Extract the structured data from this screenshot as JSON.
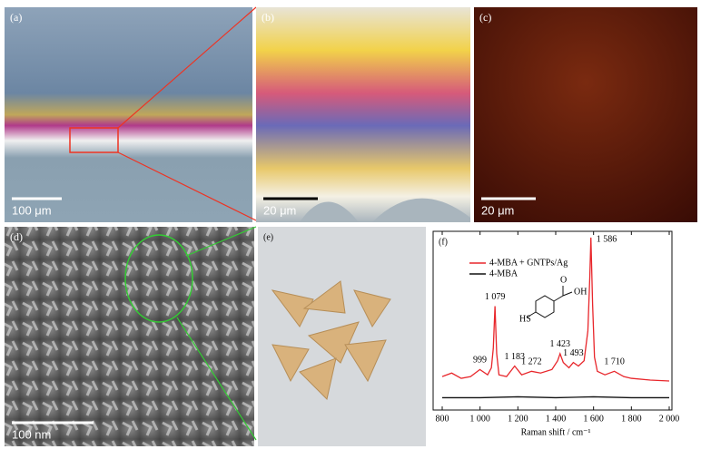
{
  "panels": [
    {
      "label": "(a)",
      "scale": "100 μm"
    },
    {
      "label": "(b)",
      "scale": "20 μm"
    },
    {
      "label": "(c)",
      "scale": "20 μm"
    },
    {
      "label": "(d)",
      "scale": "100 nm"
    },
    {
      "label": "(e)"
    },
    {
      "label": "(f)"
    }
  ],
  "chart_data": {
    "type": "line",
    "x_label": "Raman shift / cm⁻¹",
    "xlim": [
      800,
      2000
    ],
    "ylim": [
      0,
      100
    ],
    "xticks": [
      800,
      {
        "value": 1000,
        "label": "1 000"
      },
      {
        "value": 1200,
        "label": "1 200"
      },
      {
        "value": 1400,
        "label": "1 400"
      },
      {
        "value": 1600,
        "label": "1 600"
      },
      {
        "value": 1800,
        "label": "1 800"
      },
      {
        "value": 2000,
        "label": "2 000"
      }
    ],
    "series": [
      {
        "name": "4-MBA + GNTPs/Ag",
        "color": "#e8262b",
        "x": [
          800,
          850,
          900,
          950,
          999,
          1040,
          1060,
          1070,
          1079,
          1088,
          1100,
          1140,
          1183,
          1220,
          1272,
          1320,
          1380,
          1410,
          1423,
          1440,
          1470,
          1493,
          1520,
          1550,
          1570,
          1580,
          1586,
          1595,
          1605,
          1620,
          1660,
          1710,
          1760,
          1800,
          1900,
          2000
        ],
        "values": [
          19,
          21,
          18,
          19,
          23,
          20,
          24,
          35,
          59,
          32,
          20,
          19,
          25,
          20,
          22,
          21,
          23,
          28,
          32,
          27,
          24,
          27,
          25,
          28,
          45,
          75,
          98,
          60,
          30,
          22,
          20,
          22,
          19,
          18,
          17,
          16.5
        ]
      },
      {
        "name": "4-MBA",
        "color": "#111111",
        "x": [
          800,
          1000,
          1200,
          1400,
          1600,
          1800,
          2000
        ],
        "values": [
          7,
          7,
          7.5,
          7,
          7.5,
          7,
          7
        ]
      }
    ],
    "peaks": [
      {
        "value": 999,
        "label": "999"
      },
      {
        "value": 1079,
        "label": "1 079"
      },
      {
        "value": 1183,
        "label": "1 183"
      },
      {
        "value": 1272,
        "label": "1 272"
      },
      {
        "value": 1423,
        "label": "1 423"
      },
      {
        "value": 1493,
        "label": "1 493"
      },
      {
        "value": 1586,
        "label": "1 586"
      },
      {
        "value": 1710,
        "label": "1 710"
      }
    ],
    "structure_labels": [
      "HS",
      "O",
      "OH"
    ]
  }
}
